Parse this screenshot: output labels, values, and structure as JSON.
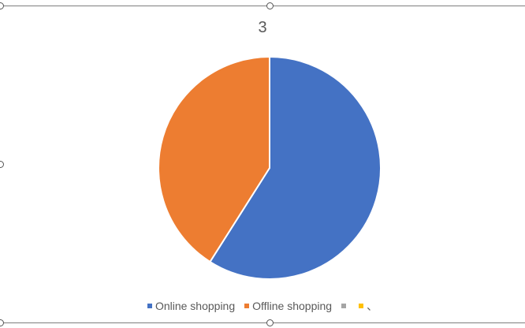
{
  "chart_data": {
    "type": "pie",
    "title": "3",
    "categories": [
      "Online shopping",
      "Offline shopping",
      "",
      "、"
    ],
    "values": [
      59,
      41,
      0,
      0
    ],
    "colors": [
      "#4472c4",
      "#ed7d31",
      "#a5a5a5",
      "#ffc000"
    ],
    "legend_position": "bottom",
    "slice_border_color": "#ffffff"
  }
}
